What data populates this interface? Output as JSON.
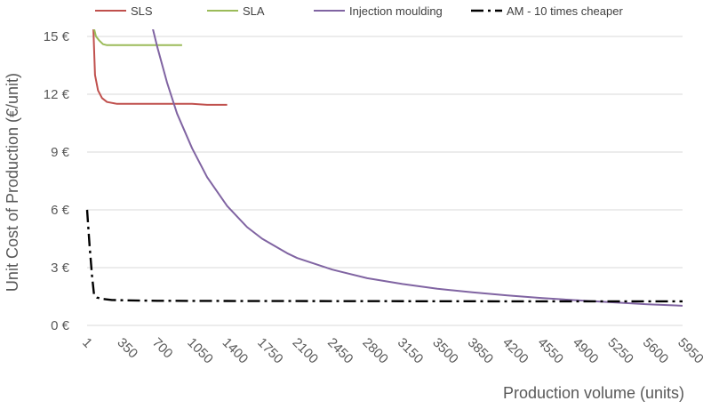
{
  "chart_data": {
    "type": "line",
    "title": "",
    "xlabel": "Production volume  (units)",
    "ylabel": "Unit Cost of Production (€/unit)",
    "xlim": [
      1,
      5950
    ],
    "ylim": [
      0,
      16
    ],
    "grid": true,
    "legend_position": "top",
    "x_ticks": [
      1,
      350,
      700,
      1050,
      1400,
      1750,
      2100,
      2450,
      2800,
      3150,
      3500,
      3850,
      4200,
      4550,
      4900,
      5250,
      5600,
      5950
    ],
    "x_tick_labels": [
      "1",
      "350",
      "700",
      "1050",
      "1400",
      "1750",
      "2100",
      "2450",
      "2800",
      "3150",
      "3500",
      "3850",
      "4200",
      "4550",
      "4900",
      "5250",
      "5600",
      "5950"
    ],
    "y_ticks": [
      0,
      3,
      6,
      9,
      12,
      15
    ],
    "y_tick_labels": [
      "0 €",
      "3 €",
      "6 €",
      "9 €",
      "12 €",
      "15 €"
    ],
    "series": [
      {
        "name": "SLS",
        "color": "#c0504d",
        "dash": "solid",
        "x": [
          60,
          80,
          110,
          150,
          200,
          300,
          500,
          700,
          900,
          1050,
          1200,
          1400
        ],
        "y": [
          16.0,
          13.0,
          12.2,
          11.8,
          11.6,
          11.5,
          11.5,
          11.5,
          11.5,
          11.5,
          11.45,
          11.45
        ]
      },
      {
        "name": "SLA",
        "color": "#9bbb59",
        "dash": "solid",
        "x": [
          55,
          70,
          90,
          120,
          160,
          200,
          300,
          500,
          700,
          950
        ],
        "y": [
          16.0,
          15.4,
          15.0,
          14.8,
          14.6,
          14.55,
          14.55,
          14.55,
          14.55,
          14.55
        ]
      },
      {
        "name": "Injection moulding",
        "color": "#8064a2",
        "dash": "solid",
        "x": [
          620,
          700,
          800,
          900,
          1050,
          1200,
          1400,
          1600,
          1750,
          2000,
          2100,
          2450,
          2800,
          3150,
          3500,
          3850,
          4200,
          4550,
          4900,
          5250,
          5600,
          5950
        ],
        "y": [
          16.2,
          14.5,
          12.6,
          11.0,
          9.2,
          7.7,
          6.2,
          5.1,
          4.5,
          3.75,
          3.5,
          2.9,
          2.45,
          2.15,
          1.9,
          1.72,
          1.56,
          1.42,
          1.3,
          1.2,
          1.1,
          1.02
        ]
      },
      {
        "name": "AM - 10 times cheaper",
        "color": "#000000",
        "dash": "dashdot",
        "x": [
          1,
          25,
          50,
          70,
          100,
          150,
          250,
          400,
          700,
          1400,
          2800,
          4200,
          5950
        ],
        "y": [
          6.0,
          4.2,
          2.6,
          1.6,
          1.45,
          1.38,
          1.32,
          1.3,
          1.28,
          1.27,
          1.26,
          1.25,
          1.25
        ]
      }
    ]
  }
}
